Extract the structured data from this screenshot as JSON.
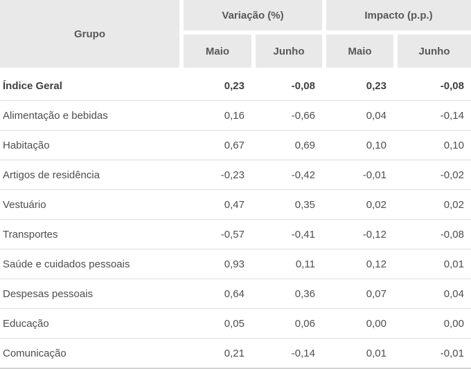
{
  "colors": {
    "header_bg": "#e9e9e9",
    "header_text": "#58585a",
    "body_text": "#4d4d4d",
    "row_border": "#dcdcdc",
    "background": "#ffffff"
  },
  "table": {
    "group_header": "Grupo",
    "col_groups": [
      {
        "label": "Variação (%)",
        "sub": [
          "Maio",
          "Junho"
        ]
      },
      {
        "label": "Impacto (p.p.)",
        "sub": [
          "Maio",
          "Junho"
        ]
      }
    ],
    "rows": [
      {
        "label": "Índice Geral",
        "bold": true,
        "values": [
          "0,23",
          "-0,08",
          "0,23",
          "-0,08"
        ]
      },
      {
        "label": "Alimentação e bebidas",
        "bold": false,
        "values": [
          "0,16",
          "-0,66",
          "0,04",
          "-0,14"
        ]
      },
      {
        "label": "Habitação",
        "bold": false,
        "values": [
          "0,67",
          "0,69",
          "0,10",
          "0,10"
        ]
      },
      {
        "label": "Artigos de residência",
        "bold": false,
        "values": [
          "-0,23",
          "-0,42",
          "-0,01",
          "-0,02"
        ]
      },
      {
        "label": "Vestuário",
        "bold": false,
        "values": [
          "0,47",
          "0,35",
          "0,02",
          "0,02"
        ]
      },
      {
        "label": "Transportes",
        "bold": false,
        "values": [
          "-0,57",
          "-0,41",
          "-0,12",
          "-0,08"
        ]
      },
      {
        "label": "Saúde e cuidados pessoais",
        "bold": false,
        "values": [
          "0,93",
          "0,11",
          "0,12",
          "0,01"
        ]
      },
      {
        "label": "Despesas pessoais",
        "bold": false,
        "values": [
          "0,64",
          "0,36",
          "0,07",
          "0,04"
        ]
      },
      {
        "label": "Educação",
        "bold": false,
        "values": [
          "0,05",
          "0,06",
          "0,00",
          "0,00"
        ]
      },
      {
        "label": "Comunicação",
        "bold": false,
        "values": [
          "0,21",
          "-0,14",
          "0,01",
          "-0,01"
        ]
      }
    ]
  },
  "chart_data": {
    "type": "table",
    "title": "",
    "columns": [
      "Grupo",
      "Variação (%) — Maio",
      "Variação (%) — Junho",
      "Impacto (p.p.) — Maio",
      "Impacto (p.p.) — Junho"
    ],
    "rows": [
      [
        "Índice Geral",
        0.23,
        -0.08,
        0.23,
        -0.08
      ],
      [
        "Alimentação e bebidas",
        0.16,
        -0.66,
        0.04,
        -0.14
      ],
      [
        "Habitação",
        0.67,
        0.69,
        0.1,
        0.1
      ],
      [
        "Artigos de residência",
        -0.23,
        -0.42,
        -0.01,
        -0.02
      ],
      [
        "Vestuário",
        0.47,
        0.35,
        0.02,
        0.02
      ],
      [
        "Transportes",
        -0.57,
        -0.41,
        -0.12,
        -0.08
      ],
      [
        "Saúde e cuidados pessoais",
        0.93,
        0.11,
        0.12,
        0.01
      ],
      [
        "Despesas pessoais",
        0.64,
        0.36,
        0.07,
        0.04
      ],
      [
        "Educação",
        0.05,
        0.06,
        0.0,
        0.0
      ],
      [
        "Comunicação",
        0.21,
        -0.14,
        0.01,
        -0.01
      ]
    ],
    "notes": "Decimal comma formatting; first row (Índice Geral) is bold; value columns right-aligned."
  }
}
